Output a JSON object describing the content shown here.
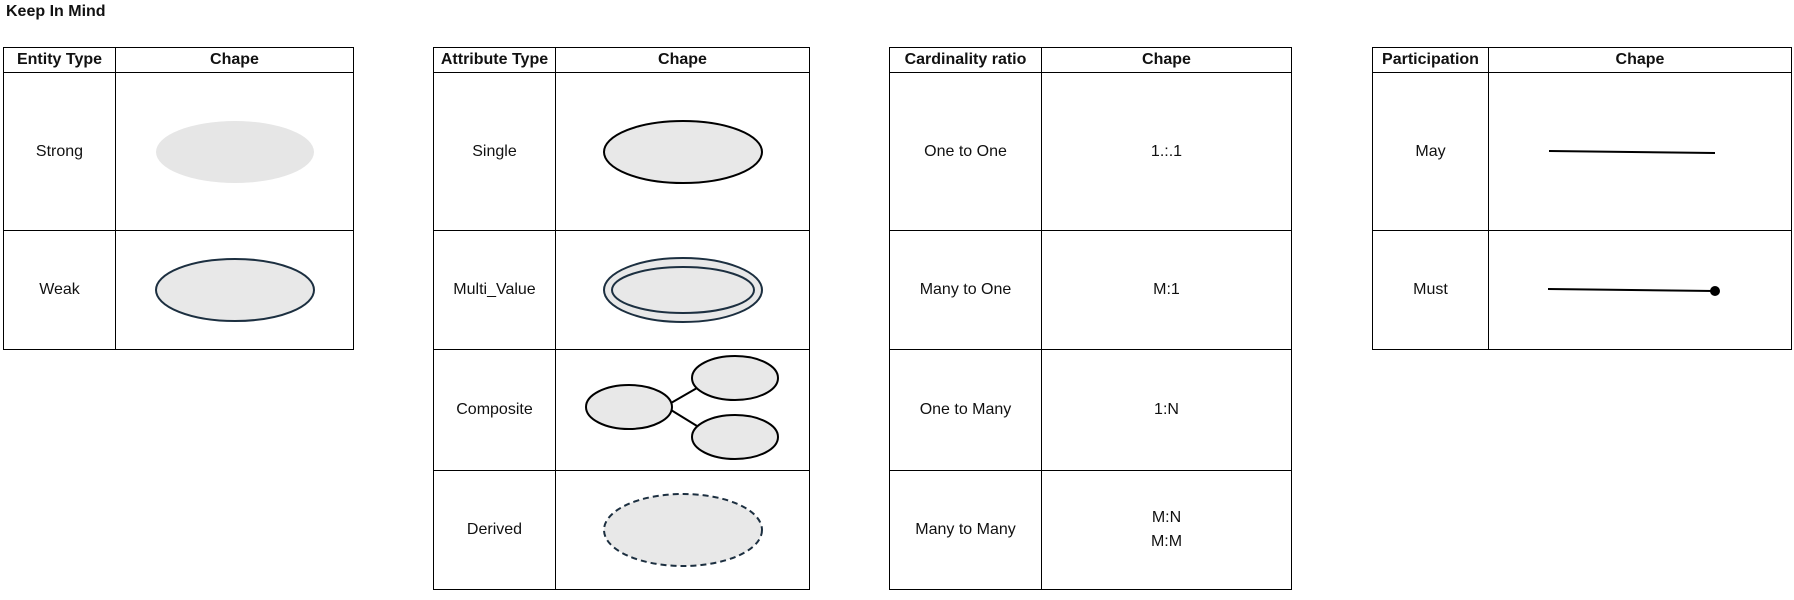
{
  "title": "Keep In Mind",
  "entity_table": {
    "headers": [
      "Entity Type",
      "Chape"
    ],
    "rows": [
      {
        "label": "Strong",
        "shape": "filled-ellipse-no-border"
      },
      {
        "label": "Weak",
        "shape": "filled-ellipse-dark-border"
      }
    ]
  },
  "attribute_table": {
    "headers": [
      "Attribute Type",
      "Chape"
    ],
    "rows": [
      {
        "label": "Single",
        "shape": "ellipse"
      },
      {
        "label": "Multi_Value",
        "shape": "double-ellipse"
      },
      {
        "label": "Composite",
        "shape": "connected-ellipses"
      },
      {
        "label": "Derived",
        "shape": "dashed-ellipse"
      }
    ]
  },
  "cardinality_table": {
    "headers": [
      "Cardinality ratio",
      "Chape"
    ],
    "rows": [
      {
        "label": "One to One",
        "value": "1.:.1"
      },
      {
        "label": "Many to One",
        "value": "M:1"
      },
      {
        "label": "One to Many",
        "value": "1:N"
      },
      {
        "label": "Many to Many",
        "value": "M:N",
        "value2": "M:M"
      }
    ]
  },
  "participation_table": {
    "headers": [
      "Participation",
      "Chape"
    ],
    "rows": [
      {
        "label": "May",
        "shape": "line"
      },
      {
        "label": "Must",
        "shape": "line-with-dot"
      }
    ]
  },
  "colors": {
    "ellipse_fill": "#e8e8e8",
    "strong_fill": "#e6e6e6",
    "dark_border": "#1c2f40",
    "line": "#000000"
  }
}
